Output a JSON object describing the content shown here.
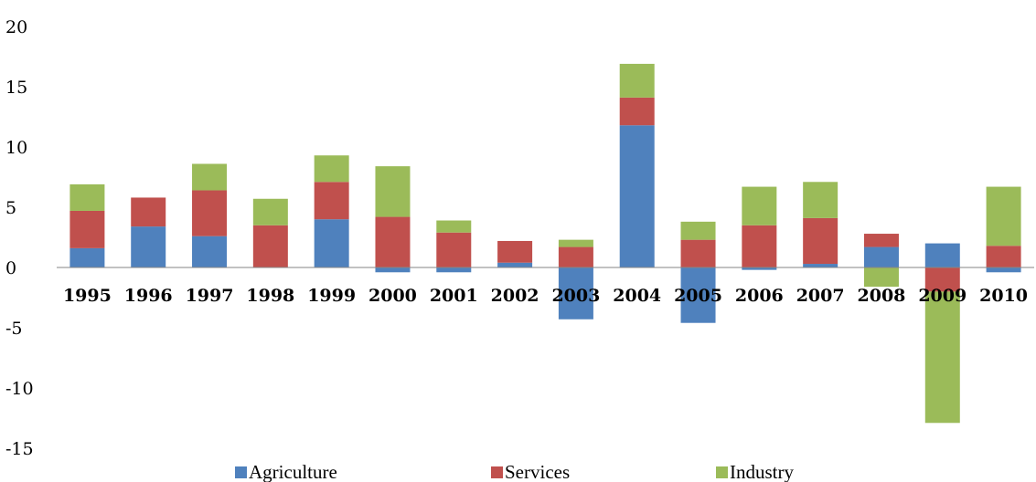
{
  "chart_data": {
    "type": "bar",
    "stacked": true,
    "categories": [
      "1995",
      "1996",
      "1997",
      "1998",
      "1999",
      "2000",
      "2001",
      "2002",
      "2003",
      "2004",
      "2005",
      "2006",
      "2007",
      "2008",
      "2009",
      "2010"
    ],
    "series": [
      {
        "name": "Agriculture",
        "color": "#4f81bd",
        "values": [
          1.6,
          3.4,
          2.6,
          0.0,
          4.0,
          -0.4,
          -0.4,
          0.4,
          -4.3,
          11.8,
          -4.6,
          -0.2,
          0.3,
          1.7,
          2.0,
          -0.4
        ]
      },
      {
        "name": "Services",
        "color": "#c0504d",
        "values": [
          3.1,
          2.4,
          3.8,
          3.5,
          3.1,
          4.2,
          2.9,
          1.8,
          1.7,
          2.3,
          2.3,
          3.5,
          3.8,
          1.1,
          -2.0,
          1.8
        ]
      },
      {
        "name": "Industry",
        "color": "#9bbb59",
        "values": [
          2.2,
          0.0,
          2.2,
          2.2,
          2.2,
          4.2,
          1.0,
          0.0,
          0.6,
          2.8,
          1.5,
          3.2,
          3.0,
          -1.6,
          -10.9,
          4.9
        ]
      }
    ],
    "ylim": [
      -15,
      20
    ],
    "yticks": [
      "20",
      "15",
      "10",
      "5",
      "0",
      "-5",
      "-10",
      "-15"
    ],
    "legend_position": "bottom",
    "grid": false
  }
}
